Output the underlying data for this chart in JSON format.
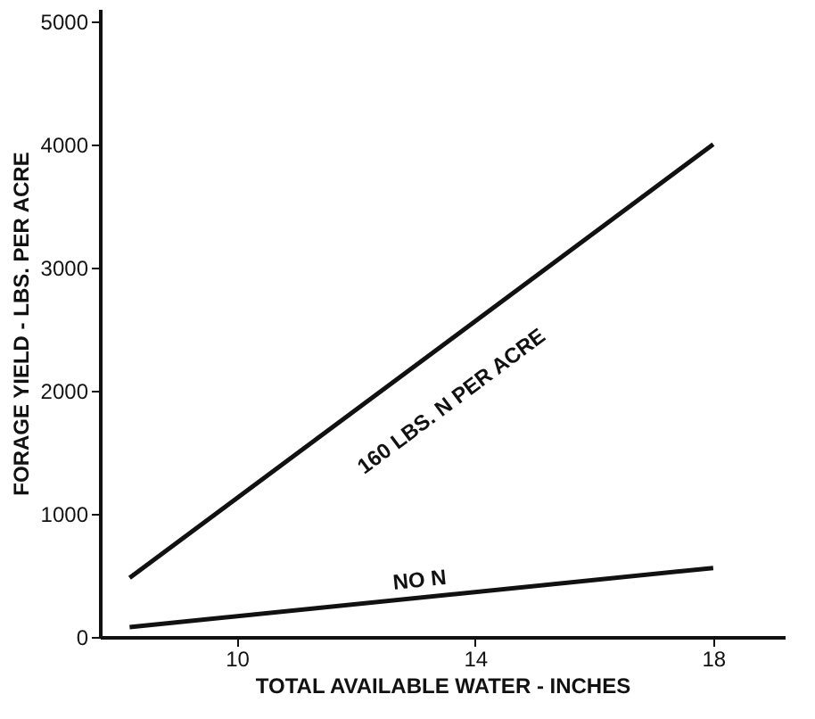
{
  "chart_data": {
    "type": "line",
    "xlabel": "TOTAL AVAILABLE WATER - INCHES",
    "ylabel": "FORAGE YIELD - LBS. PER ACRE",
    "xlim": [
      7.7,
      19.2
    ],
    "xticks": [
      10,
      14,
      18
    ],
    "ylim": [
      0,
      5100
    ],
    "yticks": [
      0,
      1000,
      2000,
      3000,
      4000,
      5000
    ],
    "grid": false,
    "marker": "none",
    "line_style": "solid",
    "x": [
      8.2,
      18.0
    ],
    "series": [
      {
        "name": "160 LBS. N PER ACRE",
        "color": "#111111",
        "values": [
          480,
          4000
        ]
      },
      {
        "name": "NO N",
        "color": "#111111",
        "values": [
          80,
          560
        ]
      }
    ]
  }
}
